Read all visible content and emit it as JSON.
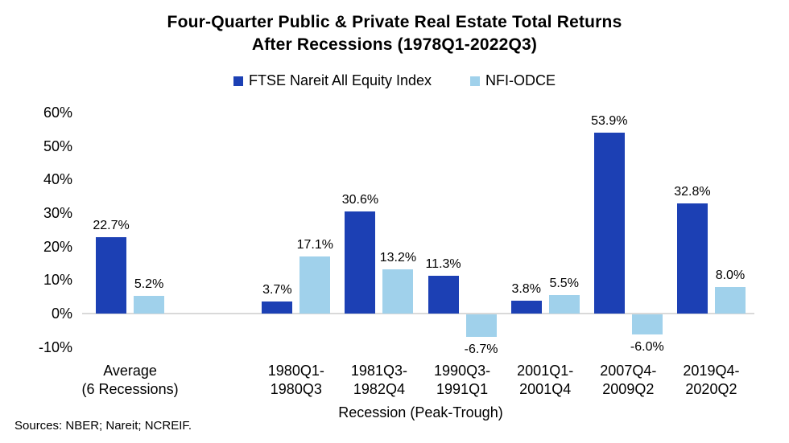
{
  "title": {
    "line1": "Four-Quarter Public & Private Real Estate Total Returns",
    "line2": "After Recessions (1978Q1-2022Q3)"
  },
  "colors": {
    "series1": "#1c40b4",
    "series2": "#a0d1eb",
    "axis_line": "#d9d9d9",
    "text": "#000000"
  },
  "chart_data": {
    "type": "bar",
    "title": "Four-Quarter Public & Private Real Estate Total Returns After Recessions (1978Q1-2022Q3)",
    "xlabel": "Recession (Peak-Trough)",
    "ylabel": "",
    "ylim": [
      -10,
      60
    ],
    "ytick_labels": [
      "60%",
      "50%",
      "40%",
      "30%",
      "20%",
      "10%",
      "0%",
      "-10%"
    ],
    "ytick_values": [
      60,
      50,
      40,
      30,
      20,
      10,
      0,
      -10
    ],
    "grid": false,
    "legend_position": "top",
    "categories": [
      "Average (6 Recessions)",
      "1980Q1-1980Q3",
      "1981Q3-1982Q4",
      "1990Q3-1991Q1",
      "2001Q1-2001Q4",
      "2007Q4-2009Q2",
      "2019Q4-2020Q2"
    ],
    "category_lines": [
      [
        "Average",
        "(6 Recessions)"
      ],
      [
        "1980Q1-",
        "1980Q3"
      ],
      [
        "1981Q3-",
        "1982Q4"
      ],
      [
        "1990Q3-",
        "1991Q1"
      ],
      [
        "2001Q1-",
        "2001Q4"
      ],
      [
        "2007Q4-",
        "2009Q2"
      ],
      [
        "2019Q4-",
        "2020Q2"
      ]
    ],
    "series": [
      {
        "name": "FTSE Nareit All Equity Index",
        "color": "#1c40b4",
        "values": [
          22.7,
          3.7,
          30.6,
          11.3,
          3.8,
          53.9,
          32.8
        ],
        "labels": [
          "22.7%",
          "3.7%",
          "30.6%",
          "11.3%",
          "3.8%",
          "53.9%",
          "32.8%"
        ]
      },
      {
        "name": "NFI-ODCE",
        "color": "#a0d1eb",
        "values": [
          5.2,
          17.1,
          13.2,
          -6.7,
          5.5,
          -6.0,
          8.0
        ],
        "labels": [
          "5.2%",
          "17.1%",
          "13.2%",
          "-6.7%",
          "5.5%",
          "-6.0%",
          "8.0%"
        ]
      }
    ]
  },
  "footer": {
    "sources": "Sources: NBER; Nareit; NCREIF."
  }
}
